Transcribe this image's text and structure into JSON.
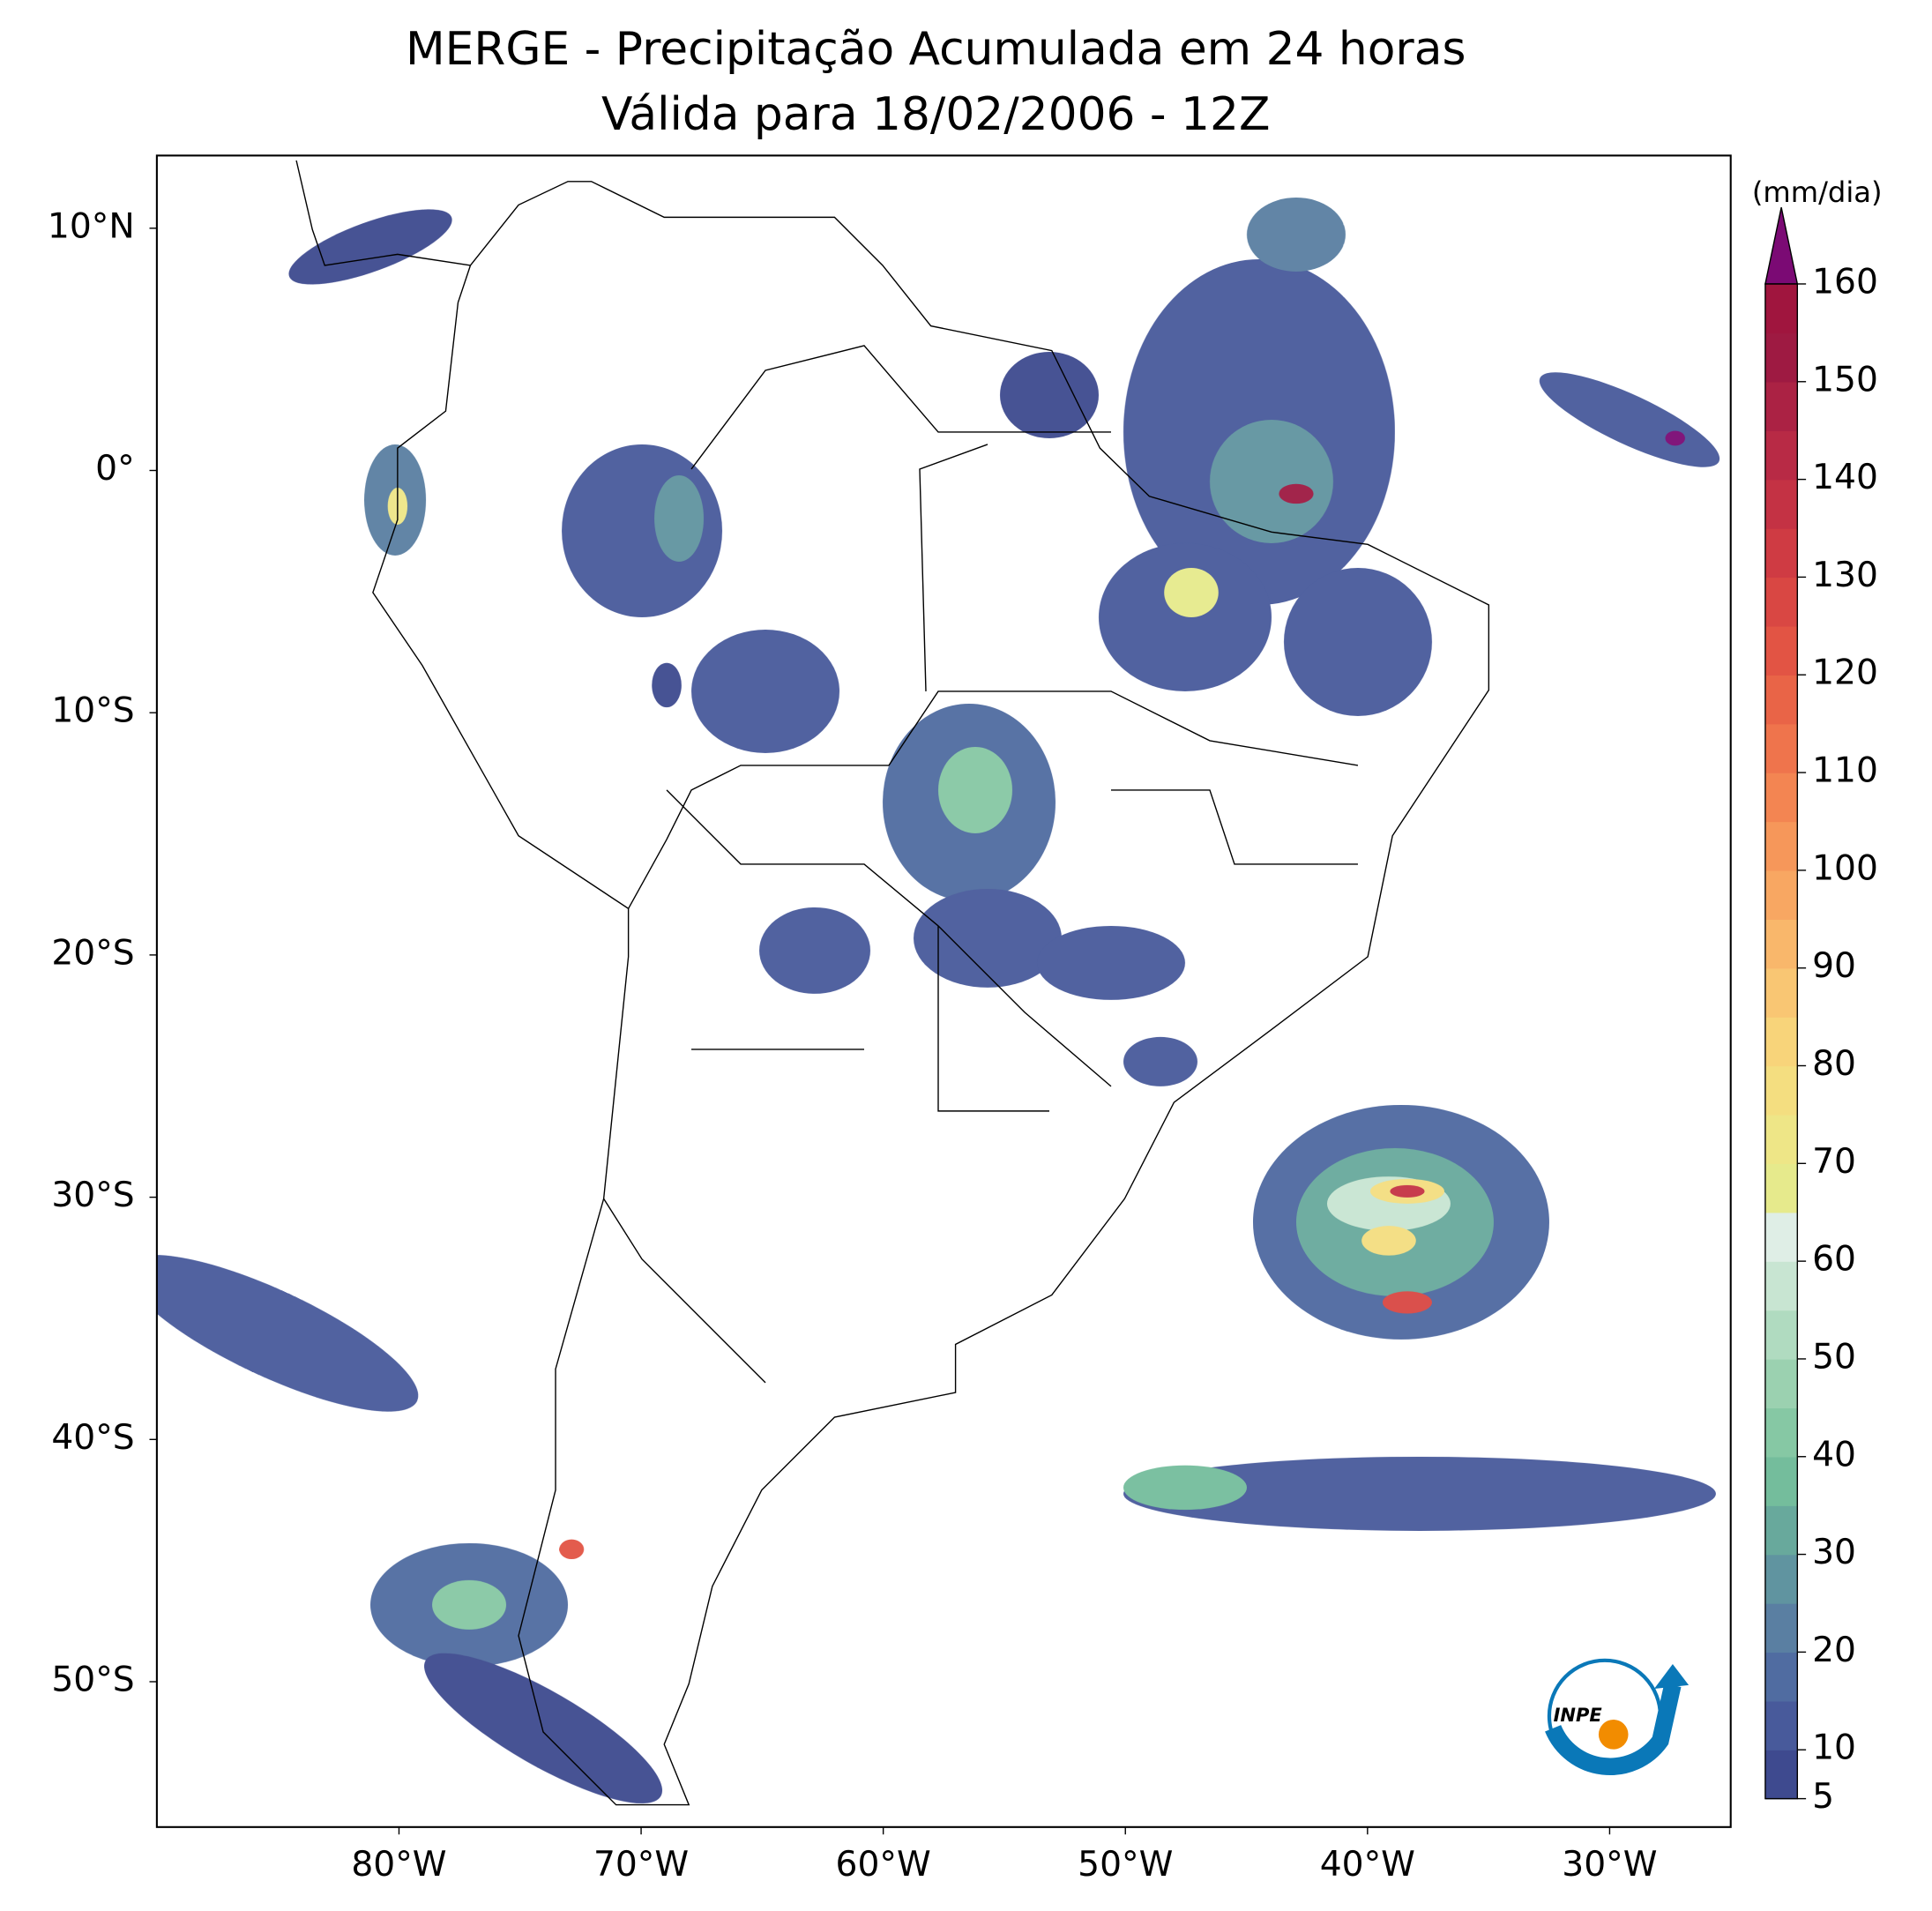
{
  "chart_data": {
    "type": "map",
    "title": "MERGE - Precipitação Acumulada em 24 horas",
    "subtitle": "Válida para 18/02/2006 - 12Z",
    "xlim": [
      -90,
      -25
    ],
    "ylim": [
      -56,
      13
    ],
    "xticks": [
      {
        "value": -80,
        "label": "80°W"
      },
      {
        "value": -70,
        "label": "70°W"
      },
      {
        "value": -60,
        "label": "60°W"
      },
      {
        "value": -50,
        "label": "50°W"
      },
      {
        "value": -40,
        "label": "40°W"
      },
      {
        "value": -30,
        "label": "30°W"
      }
    ],
    "yticks": [
      {
        "value": 10,
        "label": "10°N"
      },
      {
        "value": 0,
        "label": "0°"
      },
      {
        "value": -10,
        "label": "10°S"
      },
      {
        "value": -20,
        "label": "20°S"
      },
      {
        "value": -30,
        "label": "30°S"
      },
      {
        "value": -40,
        "label": "40°S"
      },
      {
        "value": -50,
        "label": "50°S"
      }
    ],
    "colorbar": {
      "label": "(mm/dia)",
      "lim": [
        5,
        160
      ],
      "ticks": [
        5,
        10,
        20,
        30,
        40,
        50,
        60,
        70,
        80,
        90,
        100,
        110,
        120,
        130,
        140,
        150,
        160
      ],
      "colors": [
        "#3e4a8f",
        "#485a9b",
        "#506ca1",
        "#5a7fa2",
        "#6094a0",
        "#68a99c",
        "#74bd9c",
        "#86c8a4",
        "#9bd1b0",
        "#b0dbc0",
        "#c8e5d2",
        "#dfeee6",
        "#e6ea8c",
        "#eee687",
        "#f4de80",
        "#f8d47a",
        "#f9c673",
        "#f9b76b",
        "#f8a762",
        "#f6975a",
        "#f38552",
        "#ef744c",
        "#e96447",
        "#e25444",
        "#d94743",
        "#cf3b43",
        "#c43244",
        "#b82a45",
        "#ab2244",
        "#9e1a42",
        "#a0153e"
      ],
      "extend_color": "#7b0a74"
    },
    "logo": "INPE"
  }
}
